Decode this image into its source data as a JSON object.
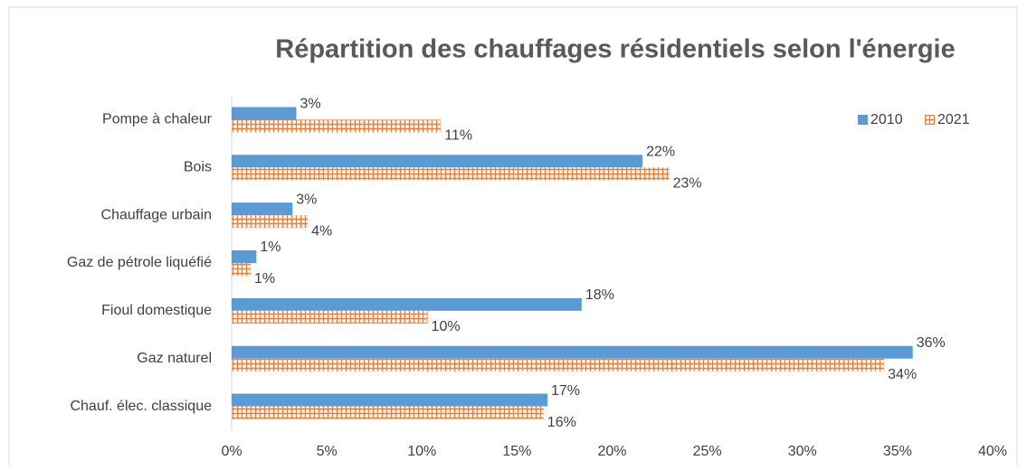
{
  "chart_data": {
    "type": "barh",
    "title": "Répartition des chauffages résidentiels selon l'énergie",
    "categories": [
      "Pompe à chaleur",
      "Bois",
      "Chauffage urbain",
      "Gaz de pétrole liquéfié",
      "Fioul domestique",
      "Gaz naturel",
      "Chauf. élec. classique"
    ],
    "series": [
      {
        "name": "2010",
        "color": "#5b9bd5",
        "values": [
          3.4,
          21.6,
          3.2,
          1.3,
          18.4,
          35.8,
          16.6
        ],
        "value_labels": [
          "3%",
          "22%",
          "3%",
          "1%",
          "18%",
          "36%",
          "17%"
        ]
      },
      {
        "name": "2021",
        "color": "#ed7d31",
        "pattern": "grid",
        "values": [
          11.0,
          23.0,
          4.0,
          1.0,
          10.3,
          34.3,
          16.4
        ],
        "value_labels": [
          "11%",
          "23%",
          "4%",
          "1%",
          "10%",
          "34%",
          "16%"
        ]
      }
    ],
    "xlim": [
      0,
      40
    ],
    "xticks": [
      {
        "value": 0,
        "label": "0%"
      },
      {
        "value": 5,
        "label": "5%"
      },
      {
        "value": 10,
        "label": "10%"
      },
      {
        "value": 15,
        "label": "15%"
      },
      {
        "value": 20,
        "label": "20%"
      },
      {
        "value": 25,
        "label": "25%"
      },
      {
        "value": 30,
        "label": "30%"
      },
      {
        "value": 35,
        "label": "35%"
      },
      {
        "value": 40,
        "label": "40%"
      }
    ],
    "grid": false,
    "legend": "top-right"
  }
}
